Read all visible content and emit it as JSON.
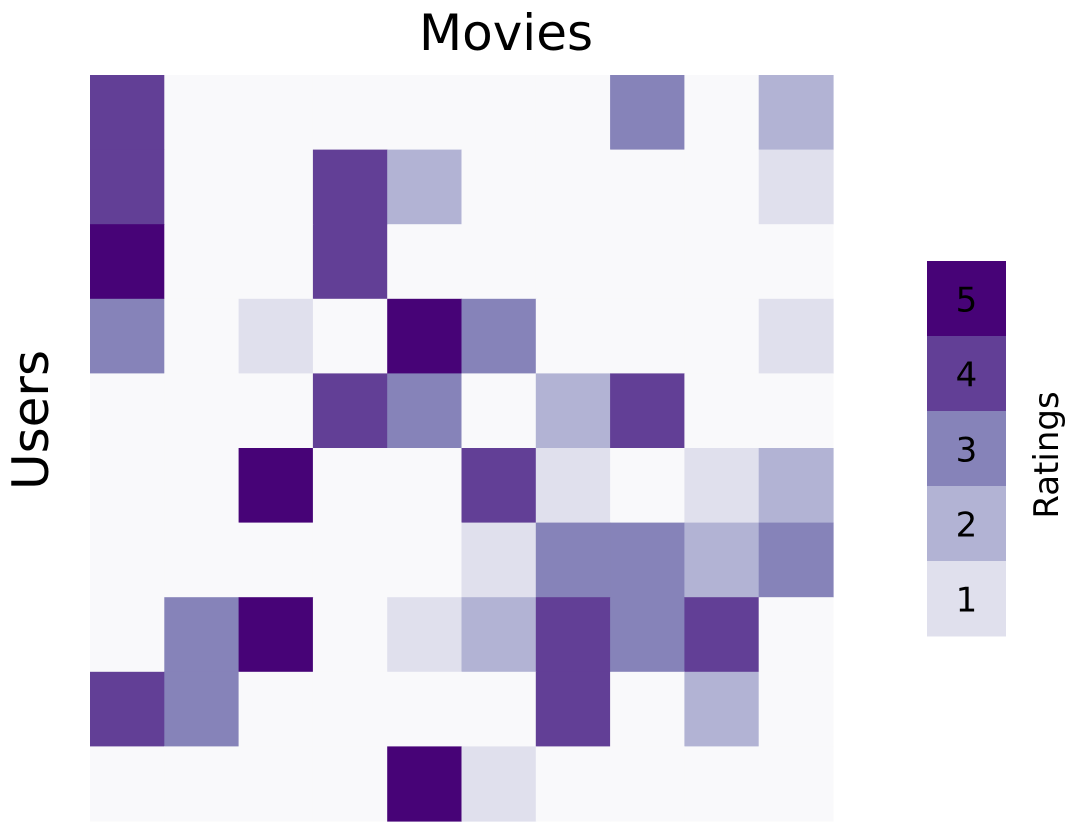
{
  "chart_data": {
    "type": "heatmap",
    "title": "Movies",
    "xlabel": "Movies",
    "ylabel": "Users",
    "legend": {
      "title": "Ratings",
      "position": "right",
      "levels": [
        5,
        4,
        3,
        2,
        1
      ]
    },
    "colors": {
      "0": "#f9f9fb",
      "1": "#e0e0ed",
      "2": "#b2b3d4",
      "3": "#8683b9",
      "4": "#623f96",
      "5": "#470377"
    },
    "matrix": [
      [
        4,
        0,
        0,
        0,
        0,
        0,
        0,
        3,
        0,
        2
      ],
      [
        4,
        0,
        0,
        4,
        2,
        0,
        0,
        0,
        0,
        1
      ],
      [
        5,
        0,
        0,
        4,
        0,
        0,
        0,
        0,
        0,
        0
      ],
      [
        3,
        0,
        1,
        0,
        5,
        3,
        0,
        0,
        0,
        1
      ],
      [
        0,
        0,
        0,
        4,
        3,
        0,
        2,
        4,
        0,
        0
      ],
      [
        0,
        0,
        5,
        0,
        0,
        4,
        1,
        0,
        1,
        2
      ],
      [
        0,
        0,
        0,
        0,
        0,
        1,
        3,
        3,
        2,
        3
      ],
      [
        0,
        3,
        5,
        0,
        1,
        2,
        4,
        3,
        4,
        0
      ],
      [
        4,
        3,
        0,
        0,
        0,
        0,
        4,
        0,
        2,
        0
      ],
      [
        0,
        0,
        0,
        0,
        5,
        1,
        0,
        0,
        0,
        0
      ]
    ]
  }
}
